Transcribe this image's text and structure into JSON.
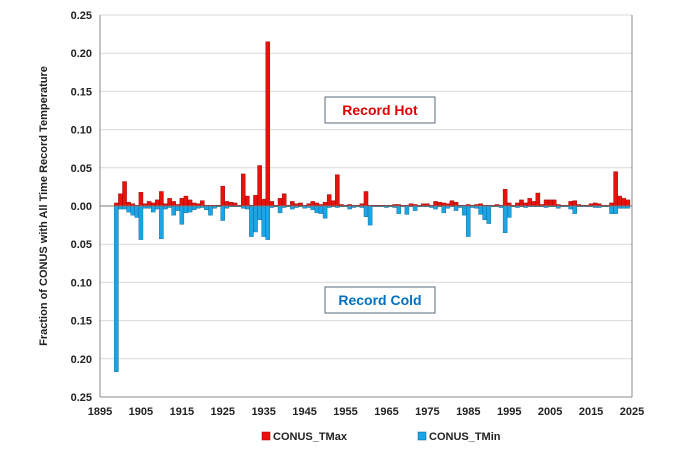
{
  "chart_data": {
    "type": "bar",
    "title": "",
    "xlabel": "",
    "ylabel": "Fraction of CONUS with All Time Record Temperature",
    "xlim": [
      1895,
      2025
    ],
    "ylim": [
      -0.25,
      0.25
    ],
    "x_ticks": [
      "1895",
      "1905",
      "1915",
      "1925",
      "1935",
      "1945",
      "1955",
      "1965",
      "1975",
      "1985",
      "1995",
      "2005",
      "2015",
      "2025"
    ],
    "y_ticks": [
      "0.25",
      "0.20",
      "0.15",
      "0.10",
      "0.05",
      "0.00",
      "0.05",
      "0.10",
      "0.15",
      "0.20",
      "0.25"
    ],
    "grid": true,
    "legend_position": "bottom",
    "annotations": {
      "hot": "Record Hot",
      "cold": "Record Cold"
    },
    "colors": {
      "hot": "#e8120c",
      "cold": "#1aa6e6",
      "hot_text": "#e00000",
      "cold_text": "#0070c0"
    },
    "start_year": 1896,
    "series": [
      {
        "name": "CONUS_TMax",
        "values": [
          0,
          0,
          0,
          0.004,
          0.016,
          0.032,
          0.005,
          0.003,
          0.001,
          0.018,
          0.003,
          0.006,
          0.004,
          0.008,
          0.019,
          0.003,
          0.01,
          0.006,
          0.002,
          0.01,
          0.013,
          0.008,
          0.004,
          0.003,
          0.007,
          0.001,
          0.001,
          0.001,
          0.001,
          0.026,
          0.006,
          0.005,
          0.004,
          0.001,
          0.042,
          0.013,
          0.001,
          0.014,
          0.053,
          0.009,
          0.215,
          0.006,
          0.001,
          0.01,
          0.016,
          0.001,
          0.006,
          0.003,
          0.004,
          0.001,
          0.003,
          0.006,
          0.004,
          0.002,
          0.005,
          0.015,
          0.007,
          0.041,
          0.002,
          0.001,
          0.002,
          0.001,
          0.001,
          0.003,
          0.019,
          0.001,
          0.001,
          0.001,
          0.001,
          0.001,
          0.001,
          0.002,
          0.002,
          0.001,
          0.001,
          0.003,
          0.002,
          0.001,
          0.003,
          0.003,
          0.001,
          0.006,
          0.005,
          0.004,
          0.003,
          0.007,
          0.005,
          0.001,
          0.001,
          0.002,
          0.001,
          0.002,
          0.003,
          0.001,
          0.001,
          0.001,
          0.002,
          0.001,
          0.022,
          0.004,
          0.001,
          0.004,
          0.008,
          0.004,
          0.01,
          0.006,
          0.017,
          0.002,
          0.008,
          0.008,
          0.008,
          0.002,
          0.001,
          0.001,
          0.006,
          0.007,
          0.002,
          0.001,
          0.001,
          0.003,
          0.004,
          0.003,
          0.001,
          0.001,
          0.004,
          0.045,
          0.013,
          0.01,
          0.008
        ]
      },
      {
        "name": "CONUS_TMin",
        "values": [
          0,
          0,
          0,
          -0.217,
          -0.004,
          -0.004,
          -0.008,
          -0.012,
          -0.015,
          -0.044,
          -0.003,
          -0.003,
          -0.008,
          -0.004,
          -0.043,
          -0.004,
          -0.002,
          -0.012,
          -0.006,
          -0.024,
          -0.009,
          -0.008,
          -0.005,
          -0.003,
          -0.002,
          -0.005,
          -0.012,
          -0.003,
          -0.001,
          -0.019,
          -0.003,
          -0.001,
          -0.001,
          -0.001,
          -0.003,
          -0.004,
          -0.04,
          -0.034,
          -0.018,
          -0.04,
          -0.044,
          -0.002,
          -0.001,
          -0.009,
          -0.002,
          -0.001,
          -0.004,
          -0.002,
          -0.001,
          -0.003,
          -0.002,
          -0.005,
          -0.009,
          -0.01,
          -0.016,
          -0.002,
          -0.001,
          -0.002,
          -0.001,
          -0.001,
          -0.004,
          -0.002,
          -0.001,
          -0.002,
          -0.014,
          -0.025,
          -0.001,
          -0.001,
          -0.001,
          -0.002,
          -0.001,
          -0.002,
          -0.01,
          -0.001,
          -0.011,
          -0.001,
          -0.006,
          -0.001,
          -0.001,
          -0.001,
          -0.002,
          -0.004,
          -0.001,
          -0.009,
          -0.003,
          -0.001,
          -0.006,
          -0.002,
          -0.012,
          -0.04,
          -0.002,
          -0.003,
          -0.011,
          -0.018,
          -0.023,
          -0.001,
          -0.001,
          -0.002,
          -0.035,
          -0.015,
          -0.001,
          -0.002,
          -0.001,
          -0.002,
          -0.001,
          -0.001,
          -0.001,
          -0.001,
          -0.002,
          -0.001,
          -0.001,
          -0.003,
          -0.001,
          -0.001,
          -0.004,
          -0.01,
          -0.001,
          -0.001,
          -0.001,
          -0.001,
          -0.002,
          -0.002,
          -0.001,
          -0.001,
          -0.01,
          -0.01,
          -0.003,
          -0.003,
          -0.003
        ]
      }
    ]
  }
}
